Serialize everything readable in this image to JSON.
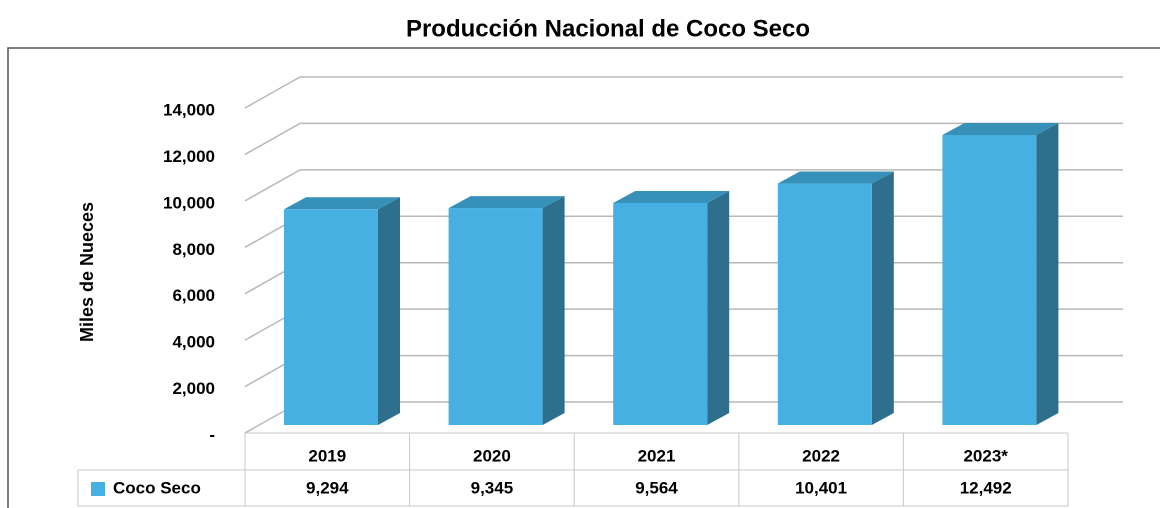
{
  "chart_data": {
    "type": "bar3d",
    "title": "Producción Nacional de Coco Seco",
    "y_axis_label": "Miles de Nueces",
    "categories": [
      "2019",
      "2020",
      "2021",
      "2022",
      "2023*"
    ],
    "series": [
      {
        "name": "Coco Seco",
        "color": "#45b0e1",
        "values": [
          9294,
          9345,
          9564,
          10401,
          12492
        ],
        "value_labels": [
          "9,294",
          "9,345",
          "9,564",
          "10,401",
          "12,492"
        ]
      }
    ],
    "ylim": [
      0,
      14000
    ],
    "yticks": [
      {
        "value": 0,
        "label": "-"
      },
      {
        "value": 2000,
        "label": "2,000"
      },
      {
        "value": 4000,
        "label": "4,000"
      },
      {
        "value": 6000,
        "label": "6,000"
      },
      {
        "value": 8000,
        "label": "8,000"
      },
      {
        "value": 10000,
        "label": "10,000"
      },
      {
        "value": 12000,
        "label": "12,000"
      },
      {
        "value": 14000,
        "label": "14,000"
      }
    ],
    "grid": true
  }
}
